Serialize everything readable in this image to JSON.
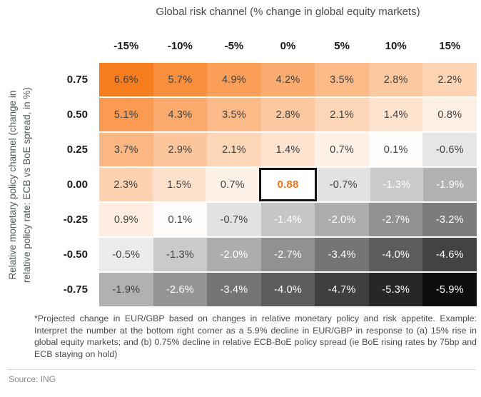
{
  "header": {
    "title": "Global risk channel (% change in global equity markets)"
  },
  "y_axis": {
    "label_lines": [
      "Relative monetary policy channel (change in",
      "relative policy rate: ECB vs BoE spread, in %)"
    ]
  },
  "chart_data": {
    "type": "heatmap",
    "title": "Global risk channel (% change in global equity markets)",
    "xlabel": "Global risk channel (% change in global equity markets)",
    "ylabel": "Relative monetary policy channel (change in relative policy rate: ECB vs BoE spread, in %)",
    "columns": [
      "-15%",
      "-10%",
      "-5%",
      "0%",
      "5%",
      "10%",
      "15%"
    ],
    "rows": [
      "0.75",
      "0.50",
      "0.25",
      "0.00",
      "-0.25",
      "-0.50",
      "-0.75"
    ],
    "values": [
      [
        6.6,
        5.7,
        4.9,
        4.2,
        3.5,
        2.8,
        2.2
      ],
      [
        5.1,
        4.3,
        3.5,
        2.8,
        2.1,
        1.4,
        0.8
      ],
      [
        3.7,
        2.9,
        2.1,
        1.4,
        0.7,
        0.1,
        -0.6
      ],
      [
        2.3,
        1.5,
        0.7,
        0.88,
        -0.7,
        -1.3,
        -1.9
      ],
      [
        0.9,
        0.1,
        -0.7,
        -1.4,
        -2.0,
        -2.7,
        -3.2
      ],
      [
        -0.5,
        -1.3,
        -2.0,
        -2.7,
        -3.4,
        -4.0,
        -4.6
      ],
      [
        -1.9,
        -2.6,
        -3.4,
        -4.0,
        -4.7,
        -5.3,
        -5.9
      ]
    ],
    "display": [
      [
        "6.6%",
        "5.7%",
        "4.9%",
        "4.2%",
        "3.5%",
        "2.8%",
        "2.2%"
      ],
      [
        "5.1%",
        "4.3%",
        "3.5%",
        "2.8%",
        "2.1%",
        "1.4%",
        "0.8%"
      ],
      [
        "3.7%",
        "2.9%",
        "2.1%",
        "1.4%",
        "0.7%",
        "0.1%",
        "-0.6%"
      ],
      [
        "2.3%",
        "1.5%",
        "0.7%",
        "0.88",
        "-0.7%",
        "-1.3%",
        "-1.9%"
      ],
      [
        "0.9%",
        "0.1%",
        "-0.7%",
        "-1.4%",
        "-2.0%",
        "-2.7%",
        "-3.2%"
      ],
      [
        "-0.5%",
        "-1.3%",
        "-2.0%",
        "-2.7%",
        "-3.4%",
        "-4.0%",
        "-4.6%"
      ],
      [
        "-1.9%",
        "-2.6%",
        "-3.4%",
        "-4.0%",
        "-4.7%",
        "-5.3%",
        "-5.9%"
      ]
    ],
    "highlight": {
      "row": 3,
      "col": 3,
      "value": 0.88,
      "label": "0.88"
    },
    "scale": {
      "positive_max_value": 6.6,
      "negative_min_value": -5.9
    },
    "colors": {
      "positive_max": "#F87D1E",
      "negative_max": "#0E0E0E",
      "neutral": "#FFFFFF",
      "highlight_text": "#F4741D",
      "highlight_border": "#141414",
      "cell_text_dark": "#3F3F3F",
      "cell_text_light": "#FFFFFF"
    },
    "white_text_cells": [
      [
        3,
        5
      ],
      [
        3,
        6
      ],
      [
        4,
        3
      ],
      [
        4,
        4
      ],
      [
        4,
        5
      ],
      [
        4,
        6
      ],
      [
        5,
        2
      ],
      [
        5,
        3
      ],
      [
        5,
        4
      ],
      [
        5,
        5
      ],
      [
        5,
        6
      ],
      [
        6,
        1
      ],
      [
        6,
        2
      ],
      [
        6,
        3
      ],
      [
        6,
        4
      ],
      [
        6,
        5
      ],
      [
        6,
        6
      ]
    ],
    "legend_position": "none",
    "grid": false
  },
  "footnote": "*Projected change in EUR/GBP based on changes in relative monetary policy and risk appetite. Example: Interpret the number at the bottom right corner as a 5.9% decline in EUR/GBP in response to (a) 15% rise in global equity markets; and (b) 0.75% decline in relative ECB-BoE policy spread (ie BoE rising rates by 75bp and ECB staying on hold)",
  "source": "Source: ING"
}
